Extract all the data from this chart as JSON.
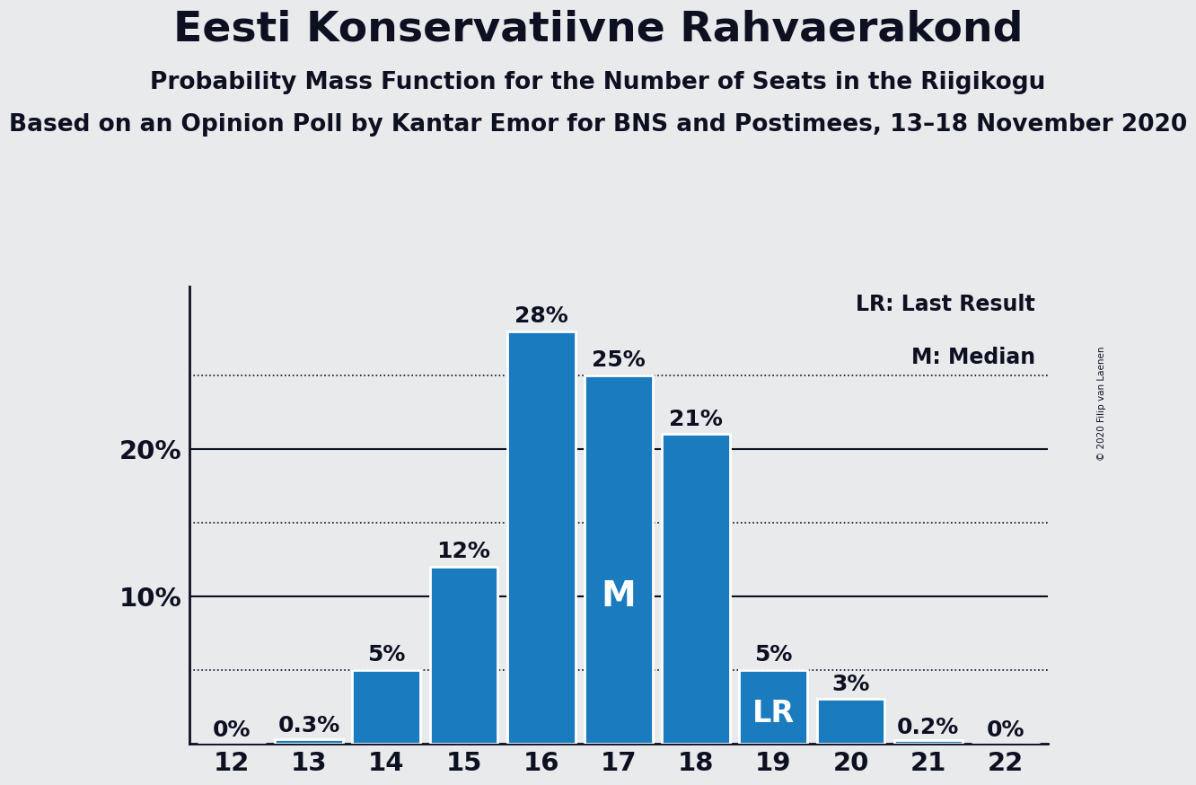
{
  "title": "Eesti Konservatiivne Rahvaerakond",
  "subtitle1": "Probability Mass Function for the Number of Seats in the Riigikogu",
  "subtitle2": "Based on an Opinion Poll by Kantar Emor for BNS and Postimees, 13–18 November 2020",
  "copyright": "© 2020 Filip van Laenen",
  "categories": [
    12,
    13,
    14,
    15,
    16,
    17,
    18,
    19,
    20,
    21,
    22
  ],
  "values": [
    0.0,
    0.3,
    5.0,
    12.0,
    28.0,
    25.0,
    21.0,
    5.0,
    3.0,
    0.2,
    0.0
  ],
  "bar_labels": [
    "0%",
    "0.3%",
    "5%",
    "12%",
    "28%",
    "25%",
    "21%",
    "5%",
    "3%",
    "0.2%",
    "0%"
  ],
  "bar_color": "#1a7bbf",
  "background_color": "#e8eaec",
  "text_color": "#0c1020",
  "solid_lines": [
    10,
    20
  ],
  "dotted_lines": [
    5,
    15,
    25
  ],
  "yticks": [
    10,
    20
  ],
  "ytick_labels": [
    "10%",
    "20%"
  ],
  "median_bar": 17,
  "lr_bar": 19,
  "legend_lr": "LR: Last Result",
  "legend_m": "M: Median",
  "title_fontsize": 34,
  "subtitle1_fontsize": 19,
  "subtitle2_fontsize": 19,
  "bar_label_fontsize": 18,
  "axis_tick_fontsize": 21,
  "annotation_fontsize": 26
}
